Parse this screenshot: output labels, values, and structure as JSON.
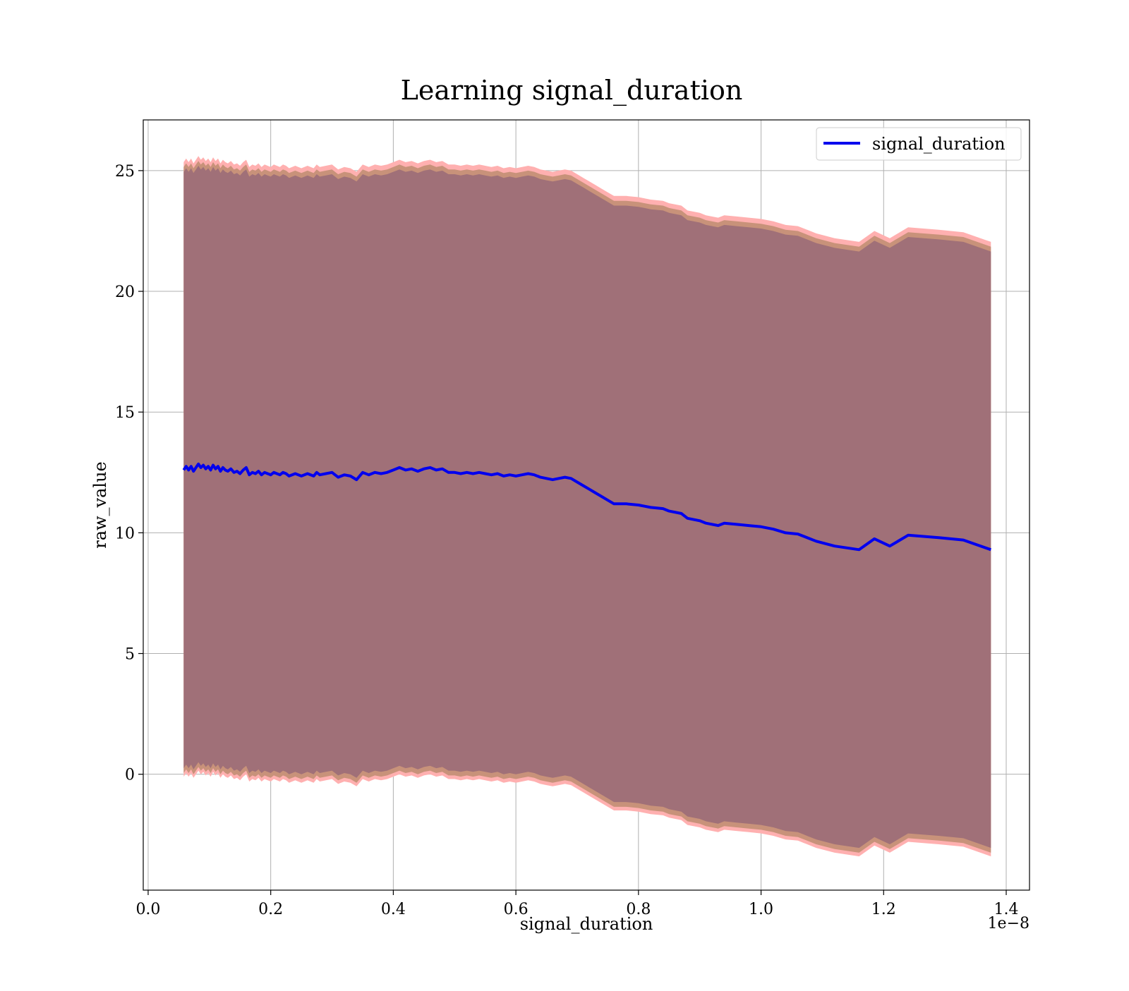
{
  "chart_data": {
    "type": "line",
    "title": "Learning signal_duration",
    "xlabel": "signal_duration",
    "ylabel": "raw_value",
    "x_offset_label": "1e−8",
    "xlim": [
      -0.008,
      1.438
    ],
    "ylim": [
      -4.8,
      27.1
    ],
    "x_ticks": [
      0.0,
      0.2,
      0.4,
      0.6,
      0.8,
      1.0,
      1.2,
      1.4
    ],
    "x_tick_labels": [
      "0.0",
      "0.2",
      "0.4",
      "0.6",
      "0.8",
      "1.0",
      "1.2",
      "1.4"
    ],
    "y_ticks": [
      0,
      5,
      10,
      15,
      20,
      25
    ],
    "y_tick_labels": [
      "0",
      "5",
      "10",
      "15",
      "20",
      "25"
    ],
    "grid": true,
    "legend_position": "top-right",
    "colors": {
      "line": "#0000ee",
      "band_outer": "#ffb0b0",
      "band_middle": "#c8927a",
      "band_inner": "#a07078",
      "grid": "#b0b0b0"
    },
    "series": [
      {
        "name": "signal_duration",
        "x": [
          0.058,
          0.062,
          0.066,
          0.07,
          0.074,
          0.078,
          0.082,
          0.086,
          0.09,
          0.094,
          0.098,
          0.102,
          0.106,
          0.11,
          0.114,
          0.118,
          0.122,
          0.126,
          0.13,
          0.135,
          0.14,
          0.145,
          0.15,
          0.155,
          0.16,
          0.165,
          0.17,
          0.175,
          0.18,
          0.185,
          0.19,
          0.195,
          0.2,
          0.205,
          0.21,
          0.215,
          0.22,
          0.225,
          0.23,
          0.24,
          0.25,
          0.26,
          0.27,
          0.275,
          0.28,
          0.29,
          0.3,
          0.31,
          0.32,
          0.33,
          0.34,
          0.35,
          0.36,
          0.37,
          0.38,
          0.39,
          0.4,
          0.41,
          0.42,
          0.43,
          0.44,
          0.45,
          0.46,
          0.47,
          0.48,
          0.49,
          0.5,
          0.51,
          0.52,
          0.53,
          0.54,
          0.55,
          0.56,
          0.57,
          0.58,
          0.59,
          0.6,
          0.61,
          0.62,
          0.63,
          0.64,
          0.65,
          0.66,
          0.67,
          0.68,
          0.69,
          0.7,
          0.71,
          0.72,
          0.73,
          0.74,
          0.75,
          0.76,
          0.78,
          0.8,
          0.81,
          0.82,
          0.84,
          0.85,
          0.87,
          0.88,
          0.9,
          0.91,
          0.93,
          0.94,
          0.96,
          0.98,
          1.0,
          1.02,
          1.04,
          1.06,
          1.07,
          1.09,
          1.12,
          1.16,
          1.185,
          1.21,
          1.24,
          1.29,
          1.33,
          1.375
        ],
        "y": [
          12.6,
          12.75,
          12.6,
          12.75,
          12.55,
          12.7,
          12.85,
          12.7,
          12.8,
          12.65,
          12.75,
          12.6,
          12.8,
          12.65,
          12.75,
          12.55,
          12.7,
          12.6,
          12.55,
          12.65,
          12.5,
          12.55,
          12.45,
          12.6,
          12.7,
          12.4,
          12.5,
          12.45,
          12.55,
          12.4,
          12.5,
          12.45,
          12.4,
          12.5,
          12.45,
          12.4,
          12.5,
          12.45,
          12.35,
          12.45,
          12.35,
          12.45,
          12.35,
          12.5,
          12.4,
          12.45,
          12.5,
          12.3,
          12.4,
          12.35,
          12.2,
          12.5,
          12.4,
          12.5,
          12.45,
          12.5,
          12.6,
          12.7,
          12.6,
          12.65,
          12.55,
          12.65,
          12.7,
          12.6,
          12.65,
          12.5,
          12.5,
          12.45,
          12.5,
          12.45,
          12.5,
          12.45,
          12.4,
          12.45,
          12.35,
          12.4,
          12.35,
          12.4,
          12.45,
          12.4,
          12.3,
          12.25,
          12.2,
          12.25,
          12.3,
          12.25,
          12.1,
          11.95,
          11.8,
          11.65,
          11.5,
          11.35,
          11.2,
          11.2,
          11.15,
          11.1,
          11.05,
          11.0,
          10.9,
          10.8,
          10.6,
          10.5,
          10.4,
          10.3,
          10.4,
          10.35,
          10.3,
          10.25,
          10.15,
          10.0,
          9.95,
          9.85,
          9.65,
          9.45,
          9.3,
          9.75,
          9.45,
          9.9,
          9.8,
          9.7,
          9.3
        ]
      }
    ],
    "bands": {
      "outer_upper_offset": 12.75,
      "outer_lower_offset": -12.7,
      "middle_upper_offset": 12.55,
      "middle_lower_offset": -12.55,
      "inner_upper_offset": 12.35,
      "inner_lower_offset": -12.35
    }
  }
}
